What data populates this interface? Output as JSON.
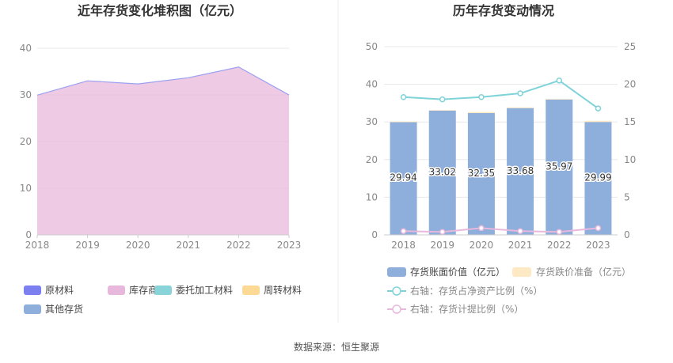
{
  "source": "数据来源：恒生聚源",
  "chart_data": [
    {
      "type": "area",
      "stacked": true,
      "title": "近年存货变化堆积图（亿元）",
      "categories": [
        "2018",
        "2019",
        "2020",
        "2021",
        "2022",
        "2023"
      ],
      "ylim": [
        0,
        40
      ],
      "yticks": [
        "0",
        "10",
        "20",
        "30",
        "40"
      ],
      "grid": true,
      "legend_position": "bottom-left",
      "series": [
        {
          "name": "原材料",
          "color": "#7b7ff0",
          "values": [
            0,
            0,
            0,
            0,
            0,
            0
          ]
        },
        {
          "name": "库存商品",
          "color": "#e8b8dc",
          "values": [
            29.94,
            33.02,
            32.35,
            33.68,
            35.97,
            29.99
          ]
        },
        {
          "name": "委托加工材料",
          "color": "#88d4d8",
          "values": [
            0,
            0,
            0,
            0,
            0,
            0
          ]
        },
        {
          "name": "周转材料",
          "color": "#fcd995",
          "values": [
            0,
            0,
            0,
            0,
            0,
            0
          ]
        },
        {
          "name": "其他存货",
          "color": "#8eaedb",
          "values": [
            0,
            0,
            0,
            0,
            0,
            0
          ]
        }
      ]
    },
    {
      "type": "bar",
      "title": "历年存货变动情况",
      "categories": [
        "2018",
        "2019",
        "2020",
        "2021",
        "2022",
        "2023"
      ],
      "ylim": [
        0,
        50
      ],
      "yticks": [
        "0",
        "10",
        "20",
        "30",
        "40",
        "50"
      ],
      "y2lim": [
        0,
        25
      ],
      "y2ticks": [
        "0",
        "5",
        "10",
        "15",
        "20",
        "25"
      ],
      "grid": true,
      "legend_position": "bottom",
      "bars": [
        {
          "name": "存货账面价值（亿元）",
          "color": "#8eaedb",
          "values": [
            29.94,
            33.02,
            32.35,
            33.68,
            35.97,
            29.99
          ],
          "labels": [
            "29.94",
            "33.02",
            "32.35",
            "33.68",
            "35.97",
            "29.99"
          ]
        },
        {
          "name": "存货跌价准备（亿元）",
          "color": "#fde9c4",
          "values": [
            0.2,
            0.15,
            0.3,
            0.2,
            0.15,
            0.3
          ]
        }
      ],
      "lines": [
        {
          "name": "右轴：存货占净资产比例（%）",
          "color": "#7fd3d8",
          "values": [
            18.3,
            18.0,
            18.3,
            18.8,
            20.5,
            16.8
          ]
        },
        {
          "name": "右轴：存货计提比例（%）",
          "color": "#e8b8dc",
          "values": [
            0.5,
            0.4,
            0.9,
            0.5,
            0.4,
            0.9
          ]
        }
      ]
    }
  ]
}
